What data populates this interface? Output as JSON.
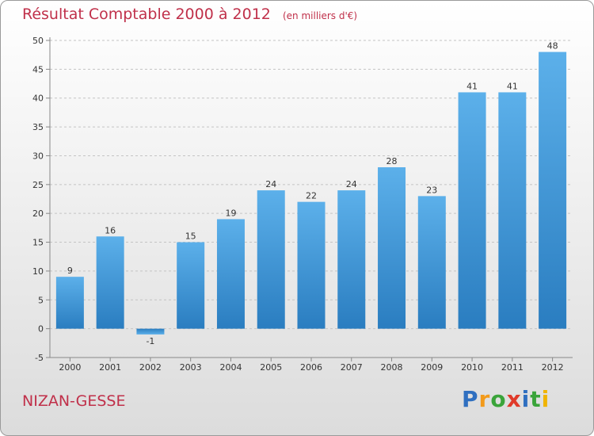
{
  "title": "Résultat Comptable 2000 à 2012",
  "unit": "(en milliers d'€)",
  "commune": "NIZAN-GESSE",
  "logo": {
    "letters": [
      "P",
      "r",
      "o",
      "x",
      "i",
      "t",
      "i"
    ],
    "colors": [
      "#2f6fc0",
      "#f29a1a",
      "#3aa43a",
      "#e03a2a",
      "#2f6fc0",
      "#3aa43a",
      "#f0b400"
    ]
  },
  "colors": {
    "title": "#c0304a",
    "bar_light": "#5cb0ea",
    "bar_dark": "#2a7dc0"
  },
  "chart_data": {
    "type": "bar",
    "title": "Résultat Comptable 2000 à 2012",
    "xlabel": "",
    "ylabel": "",
    "categories": [
      "2000",
      "2001",
      "2002",
      "2003",
      "2004",
      "2005",
      "2006",
      "2007",
      "2008",
      "2009",
      "2010",
      "2011",
      "2012"
    ],
    "values": [
      9,
      16,
      -1,
      15,
      19,
      24,
      22,
      24,
      28,
      23,
      41,
      41,
      48
    ],
    "labels": [
      "9",
      "16",
      "-1",
      "15",
      "19",
      "24",
      "22",
      "24",
      "28",
      "23",
      "41",
      "41",
      "48"
    ],
    "ylim": [
      -5,
      50
    ],
    "yticks": [
      -5,
      0,
      5,
      10,
      15,
      20,
      25,
      30,
      35,
      40,
      45,
      50
    ],
    "grid": true
  }
}
